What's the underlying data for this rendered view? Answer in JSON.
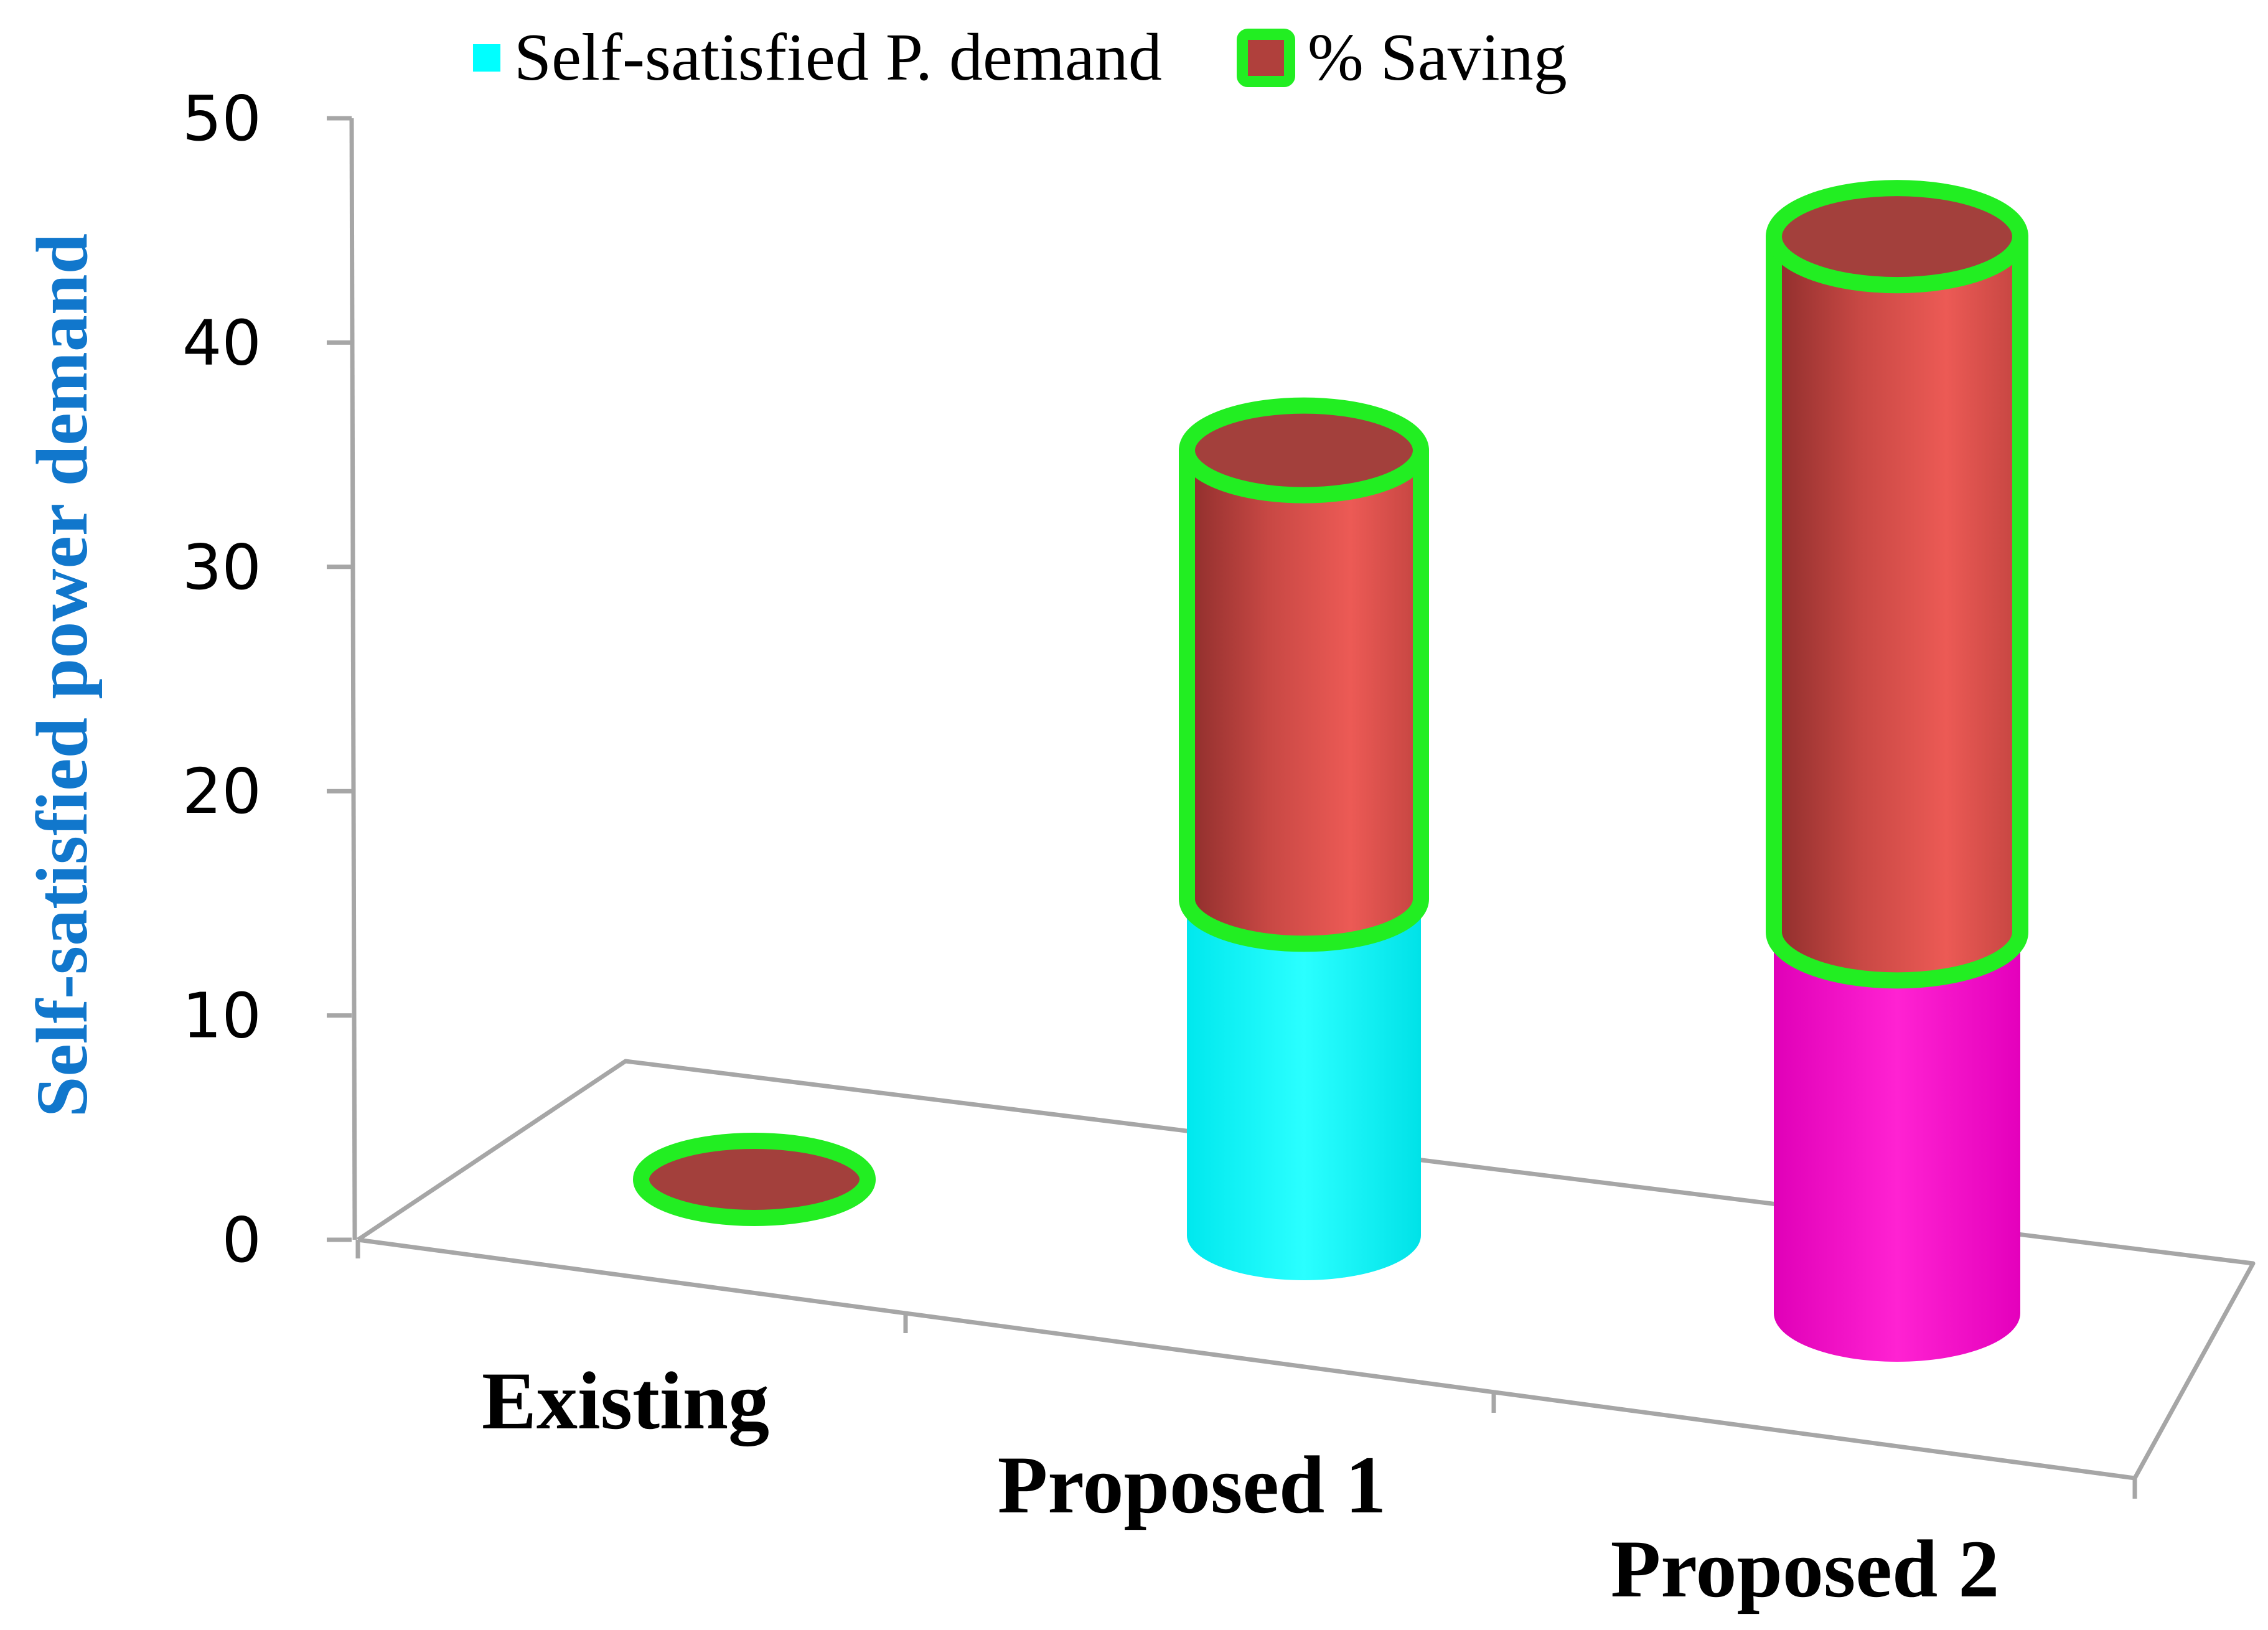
{
  "chart_data": {
    "type": "bar",
    "stacked": true,
    "projection": "3d-cylinder",
    "categories": [
      "Existing",
      "Proposed 1",
      "Proposed 2"
    ],
    "series": [
      {
        "name": "Self-satisfied P. demand",
        "values": [
          0,
          15,
          17
        ]
      },
      {
        "name": "% Saving",
        "values": [
          0,
          20,
          31
        ]
      }
    ],
    "title": "",
    "xlabel": "",
    "ylabel": "Self-satisfied power demand",
    "ylim": [
      0,
      50
    ],
    "yticks": [
      0,
      10,
      20,
      30,
      40,
      50
    ],
    "grid": false,
    "legend_position": "top",
    "colors": {
      "self_satisfied_existing": "#00ffff",
      "self_satisfied_proposed1": "#00ffff",
      "self_satisfied_proposed2": "#ff11cc",
      "saving_fill": "#b0403c",
      "saving_outline": "#22ee22",
      "axis": "#a6a6a6",
      "ylabel": "#1177cc"
    }
  }
}
